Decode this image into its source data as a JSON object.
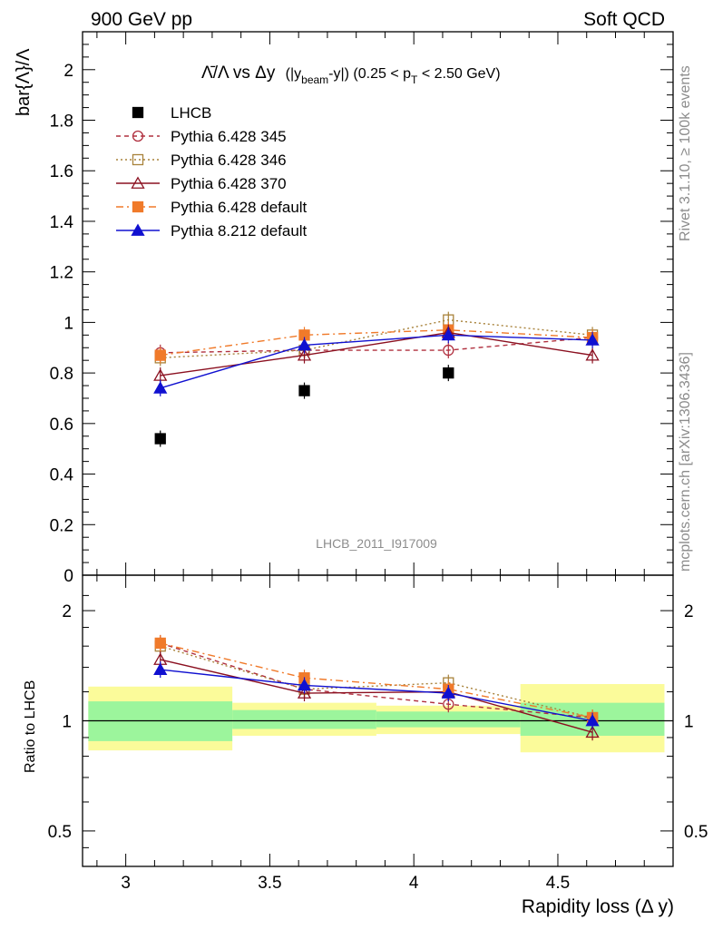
{
  "header": {
    "left": "900 GeV pp",
    "right": "Soft QCD"
  },
  "side_labels": {
    "rivet": "Rivet 3.1.10, ≥ 100k events",
    "mcplots": "mcplots.cern.ch [arXiv:1306.3436]"
  },
  "chart_data": [
    {
      "type": "scatter",
      "title": {
        "prefix": "Λ̄/Λ vs Δy",
        "expression": "(|y_beam-y|) (0.25 < p_T < 2.50 GeV)",
        "part_open": "(|y",
        "part_beam": "beam",
        "part_mid": "-y|) (0.25 < p",
        "part_T": "T",
        "part_end": " < 2.50 GeV)"
      },
      "ylabel": "bar{Λ}/Λ",
      "xlabel": "Rapidity loss (Δ y)",
      "watermark": "LHCB_2011_I917009",
      "xlim": [
        2.85,
        4.9
      ],
      "ylim": [
        0,
        2.15
      ],
      "x_ticks": [
        "3",
        "3.5",
        "4",
        "4.5"
      ],
      "y_ticks": [
        "0",
        "0.2",
        "0.4",
        "0.6",
        "0.8",
        "1",
        "1.2",
        "1.4",
        "1.6",
        "1.8",
        "2"
      ],
      "x": [
        3.12,
        3.62,
        4.12,
        4.62
      ],
      "series": [
        {
          "name": "LHCB",
          "color": "#000000",
          "values": [
            0.54,
            0.73,
            0.8,
            null
          ]
        },
        {
          "name": "Pythia 6.428 345",
          "color": "#b0303f",
          "values": [
            0.88,
            0.89,
            0.89,
            0.94
          ]
        },
        {
          "name": "Pythia 6.428 346",
          "color": "#a8823a",
          "values": [
            0.86,
            0.89,
            1.01,
            0.95
          ]
        },
        {
          "name": "Pythia 6.428 370",
          "color": "#8b1020",
          "values": [
            0.79,
            0.87,
            0.96,
            0.87
          ]
        },
        {
          "name": "Pythia 6.428 default",
          "color": "#f07a2a",
          "values": [
            0.87,
            0.95,
            0.97,
            0.94
          ]
        },
        {
          "name": "Pythia 8.212 default",
          "color": "#1010d0",
          "values": [
            0.74,
            0.91,
            0.95,
            0.93
          ]
        }
      ]
    },
    {
      "type": "scatter",
      "ylabel": "Ratio to LHCB",
      "yscale": "log",
      "ylim": [
        0.4,
        2.5
      ],
      "y_ticks": [
        "0.5",
        "1",
        "2"
      ],
      "bands": [
        {
          "x": [
            2.87,
            3.37
          ],
          "inner": [
            0.88,
            1.13
          ],
          "outer": [
            0.83,
            1.24
          ]
        },
        {
          "x": [
            3.37,
            3.87
          ],
          "inner": [
            0.95,
            1.07
          ],
          "outer": [
            0.91,
            1.12
          ]
        },
        {
          "x": [
            3.87,
            4.37
          ],
          "inner": [
            0.96,
            1.06
          ],
          "outer": [
            0.92,
            1.1
          ]
        },
        {
          "x": [
            4.37,
            4.87
          ],
          "inner": [
            0.91,
            1.12
          ],
          "outer": [
            0.82,
            1.26
          ]
        }
      ],
      "series": [
        {
          "name": "Pythia 6.428 345",
          "values": [
            1.63,
            1.22,
            1.11,
            1.02
          ]
        },
        {
          "name": "Pythia 6.428 346",
          "values": [
            1.6,
            1.22,
            1.27,
            1.02
          ]
        },
        {
          "name": "Pythia 6.428 370",
          "values": [
            1.47,
            1.19,
            1.2,
            0.93
          ]
        },
        {
          "name": "Pythia 6.428 default",
          "values": [
            1.63,
            1.31,
            1.22,
            1.02
          ]
        },
        {
          "name": "Pythia 8.212 default",
          "values": [
            1.38,
            1.25,
            1.19,
            1.0
          ]
        }
      ]
    }
  ]
}
